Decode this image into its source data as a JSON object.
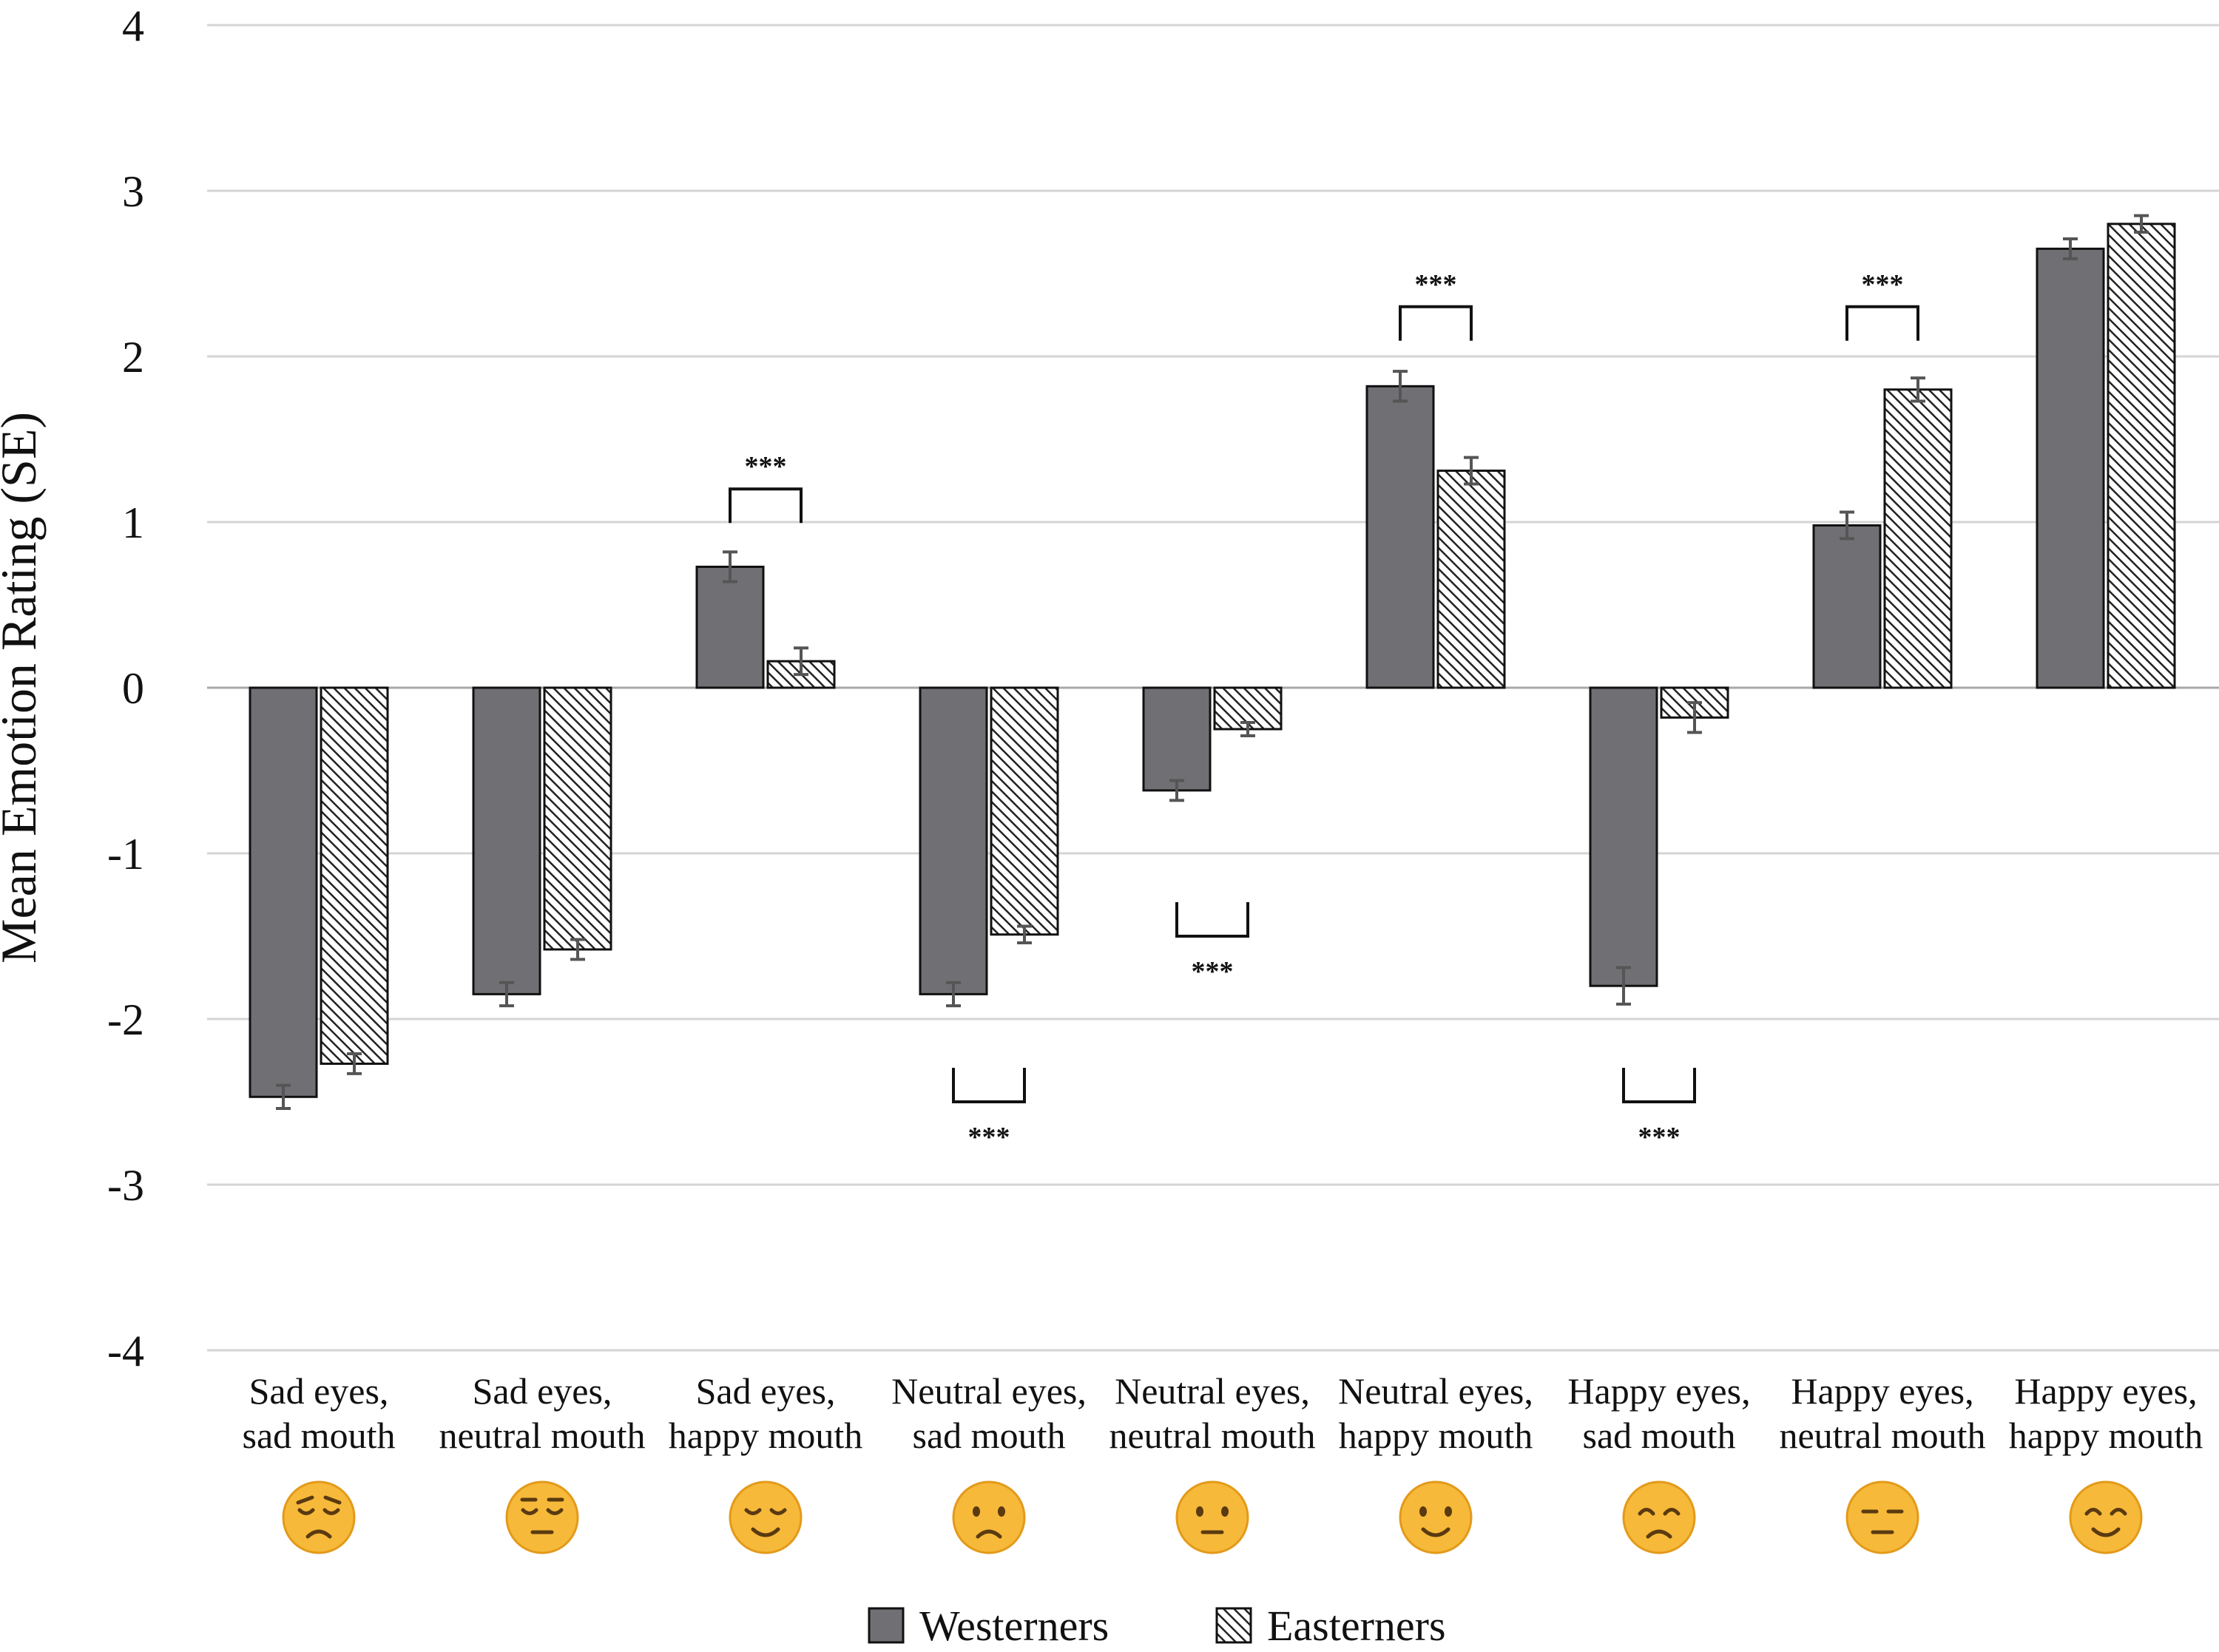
{
  "chart_data": {
    "type": "bar",
    "ylabel": "Mean Emotion Rating (SE)",
    "ylim": [
      -4,
      4
    ],
    "yticks": [
      "4",
      "3",
      "2",
      "1",
      "0",
      "-1",
      "-2",
      "-3",
      "-4"
    ],
    "ytick_values": [
      4,
      3,
      2,
      1,
      0,
      -1,
      -2,
      -3,
      -4
    ],
    "grid": true,
    "legend_position": "bottom-center",
    "categories": [
      [
        "Sad eyes,",
        "sad mouth"
      ],
      [
        "Sad eyes,",
        "neutral mouth"
      ],
      [
        "Sad eyes,",
        "happy mouth"
      ],
      [
        "Neutral eyes,",
        "sad mouth"
      ],
      [
        "Neutral eyes,",
        "neutral mouth"
      ],
      [
        "Neutral eyes,",
        "happy mouth"
      ],
      [
        "Happy eyes,",
        "sad mouth"
      ],
      [
        "Happy eyes,",
        "neutral mouth"
      ],
      [
        "Happy eyes,",
        "happy mouth"
      ]
    ],
    "category_icons": [
      "disappointed-face-icon",
      "pensive-face-icon",
      "relieved-face-icon",
      "slightly-frowning-face-icon",
      "neutral-face-icon",
      "slightly-smiling-face-icon",
      "sad-smiling-face-icon",
      "expressionless-face-icon",
      "smiling-face-icon"
    ],
    "series": [
      {
        "name": "Westerners",
        "color": "#707074",
        "pattern": "solid",
        "values": [
          -2.47,
          -1.85,
          0.73,
          -1.85,
          -0.62,
          1.82,
          -1.8,
          0.98,
          2.65
        ],
        "se": [
          0.07,
          0.07,
          0.09,
          0.07,
          0.06,
          0.09,
          0.11,
          0.08,
          0.06
        ]
      },
      {
        "name": "Easterners",
        "color": "#ffffff",
        "pattern": "diagonal-hatch",
        "values": [
          -2.27,
          -1.58,
          0.16,
          -1.49,
          -0.25,
          1.31,
          -0.18,
          1.8,
          2.8
        ],
        "se": [
          0.06,
          0.06,
          0.08,
          0.05,
          0.04,
          0.08,
          0.09,
          0.07,
          0.05
        ]
      }
    ],
    "annotations": [
      {
        "category": 2,
        "text": "***",
        "side": "above",
        "level": 1.2
      },
      {
        "category": 3,
        "text": "***",
        "side": "below",
        "level": -2.5
      },
      {
        "category": 4,
        "text": "***",
        "side": "below",
        "level": -1.5
      },
      {
        "category": 5,
        "text": "***",
        "side": "above",
        "level": 2.3
      },
      {
        "category": 6,
        "text": "***",
        "side": "below",
        "level": -2.5
      },
      {
        "category": 7,
        "text": "***",
        "side": "above",
        "level": 2.3
      }
    ]
  }
}
